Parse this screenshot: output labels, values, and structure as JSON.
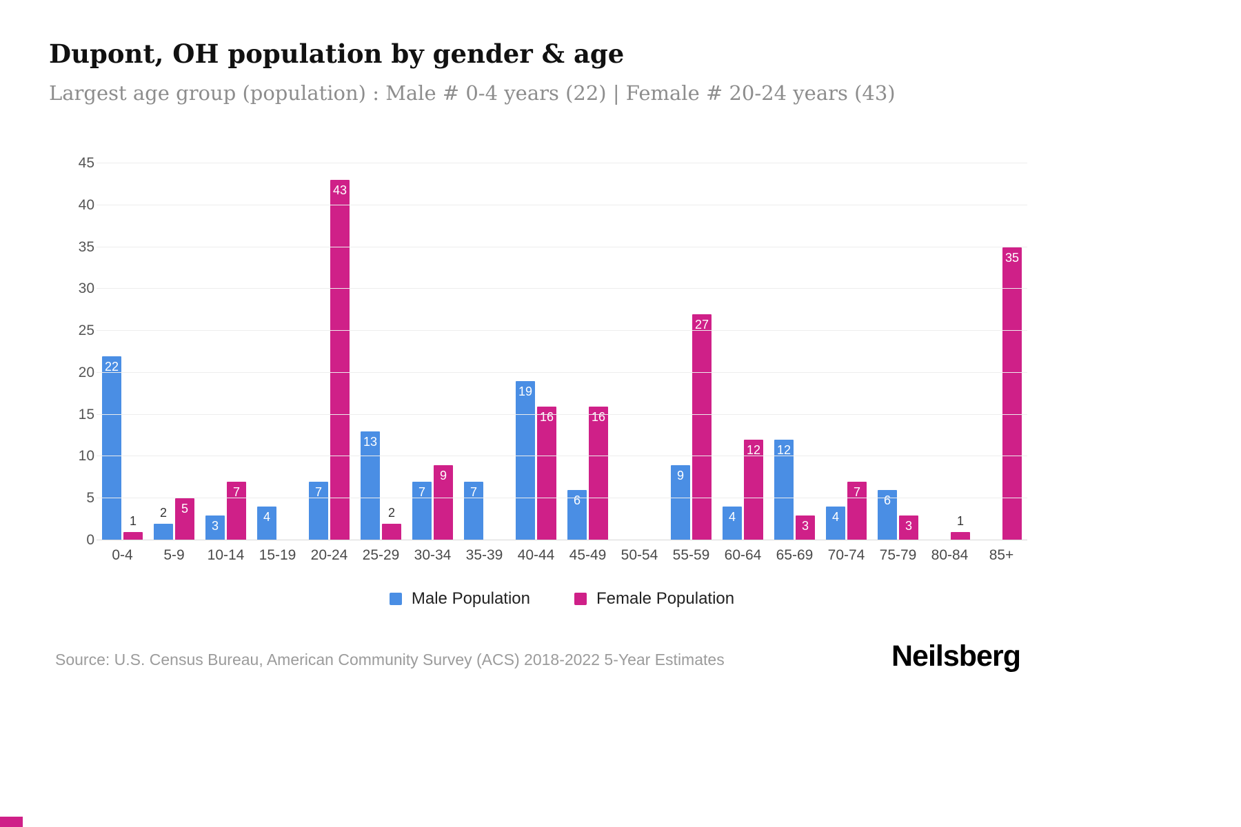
{
  "title": "Dupont, OH population by gender & age",
  "subtitle": "Largest age group (population) : Male # 0-4 years (22) | Female # 20-24 years (43)",
  "source": "Source: U.S. Census Bureau, American Community Survey (ACS) 2018-2022 5-Year Estimates",
  "logo": "Neilsberg",
  "colors": {
    "male": "#4a8ee4",
    "female": "#cf2088",
    "accent": "#cf2088"
  },
  "legend": [
    {
      "label": "Male Population",
      "color": "#4a8ee4"
    },
    {
      "label": "Female Population",
      "color": "#cf2088"
    }
  ],
  "chart_data": {
    "type": "bar",
    "title": "Dupont, OH population by gender & age",
    "xlabel": "",
    "ylabel": "",
    "categories": [
      "0-4",
      "5-9",
      "10-14",
      "15-19",
      "20-24",
      "25-29",
      "30-34",
      "35-39",
      "40-44",
      "45-49",
      "50-54",
      "55-59",
      "60-64",
      "65-69",
      "70-74",
      "75-79",
      "80-84",
      "85+"
    ],
    "series": [
      {
        "name": "Male Population",
        "color": "#4a8ee4",
        "values": [
          22,
          2,
          3,
          4,
          7,
          13,
          7,
          7,
          19,
          6,
          0,
          9,
          4,
          12,
          4,
          6,
          0,
          0
        ]
      },
      {
        "name": "Female Population",
        "color": "#cf2088",
        "values": [
          1,
          5,
          7,
          0,
          43,
          2,
          9,
          0,
          16,
          16,
          0,
          27,
          12,
          3,
          7,
          3,
          1,
          35
        ]
      }
    ],
    "ylim": [
      0,
      45
    ],
    "yticks": [
      0,
      5,
      10,
      15,
      20,
      25,
      30,
      35,
      40,
      45
    ],
    "grid": true,
    "legend_position": "bottom"
  }
}
